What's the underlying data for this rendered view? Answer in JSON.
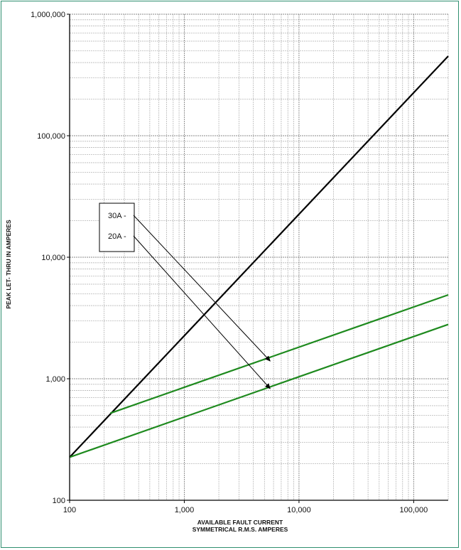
{
  "chart_data": {
    "type": "line",
    "x_scale": "log",
    "y_scale": "log",
    "xlim": [
      100,
      200000
    ],
    "ylim": [
      100,
      1000000
    ],
    "grid": true,
    "xlabel": [
      "AVAILABLE FAULT CURRENT",
      "SYMMETRICAL R.M.S. AMPERES"
    ],
    "ylabel": "PEAK LET- THRU IN AMPERES",
    "x_ticks": [
      100,
      1000,
      10000,
      100000
    ],
    "x_tick_labels": [
      "100",
      "1,000",
      "10,000",
      "100,000"
    ],
    "y_ticks": [
      100,
      1000,
      10000,
      100000,
      1000000
    ],
    "y_tick_labels": [
      "100",
      "1,000",
      "10,000",
      "100,000",
      "1,000,000"
    ],
    "series": [
      {
        "color": "#000000",
        "points": [
          [
            100,
            226
          ],
          [
            200000,
            452000
          ]
        ]
      },
      {
        "color": "#1e8a1e",
        "points": [
          [
            226,
            520
          ],
          [
            200000,
            4900
          ]
        ]
      },
      {
        "color": "#1e8a1e",
        "points": [
          [
            100,
            226
          ],
          [
            200000,
            2800
          ]
        ]
      }
    ],
    "annotations": [
      {
        "text": "30A -",
        "start": [
          330,
          30000
        ],
        "end": [
          5600,
          1400
        ]
      },
      {
        "text": "20A -",
        "start": [
          330,
          15000
        ],
        "end": [
          5600,
          830
        ]
      }
    ],
    "colors": {
      "grid": "#b8b8b8",
      "frame": "#2f8f6f",
      "axis": "#000000"
    }
  }
}
